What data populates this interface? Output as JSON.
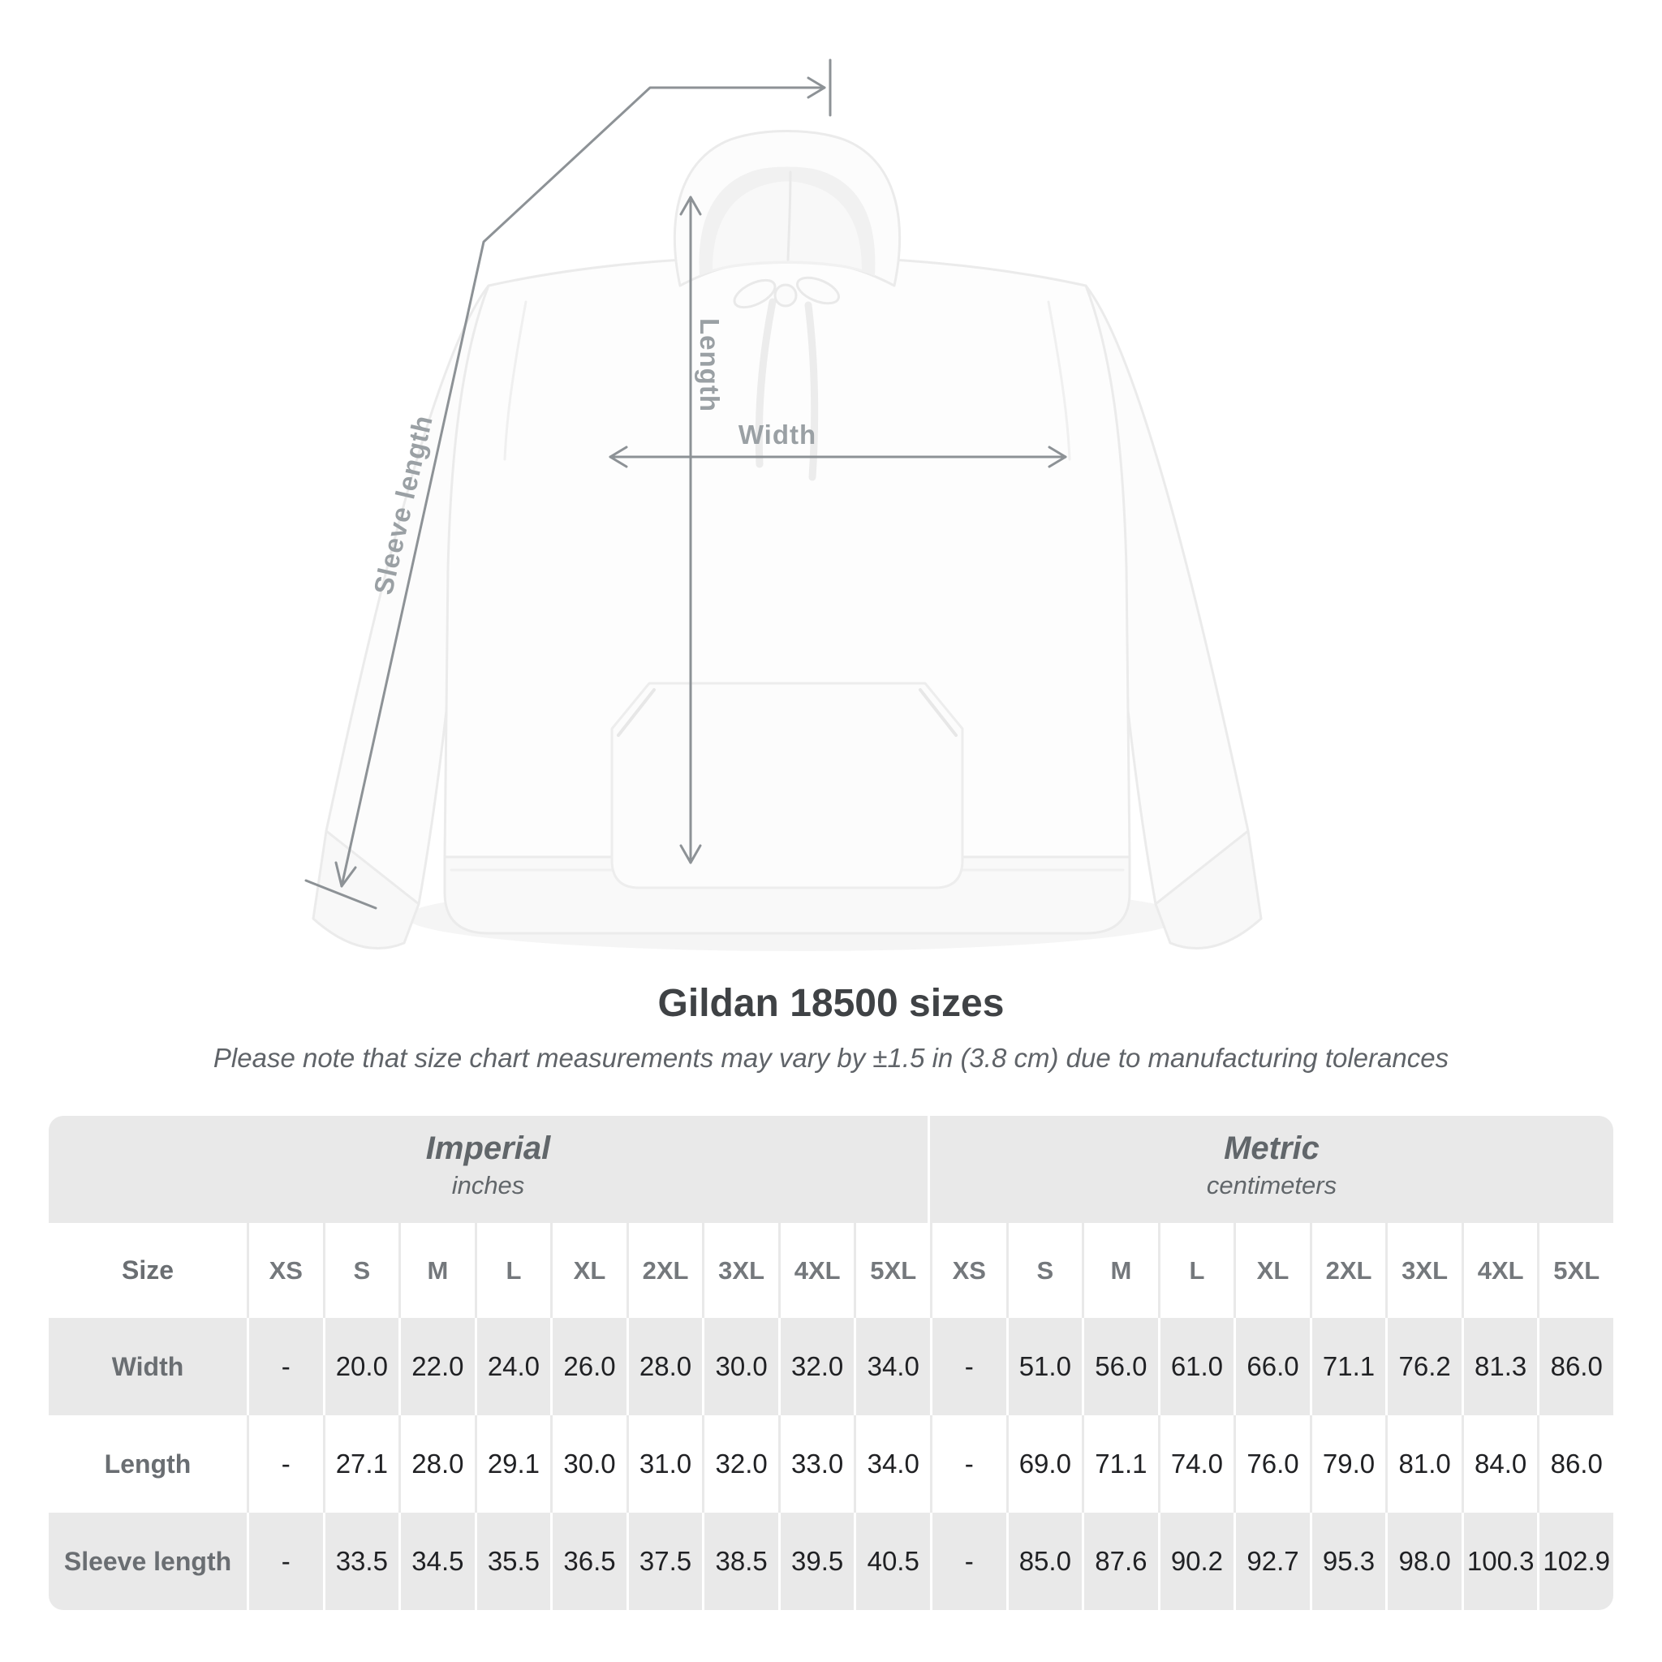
{
  "heading": {
    "title": "Gildan 18500 sizes",
    "subtitle": "Please note that size chart measurements may vary by ±1.5 in (3.8 cm) due to manufacturing tolerances"
  },
  "figure": {
    "product": "white pullover hoodie flat-lay with measurement arrows",
    "length_label": "Length",
    "width_label": "Width",
    "sleeve_label": "Sleeve length"
  },
  "table": {
    "size_label": "Size",
    "unit_groups": [
      {
        "name": "Imperial",
        "unit": "inches"
      },
      {
        "name": "Metric",
        "unit": "centimeters"
      }
    ],
    "columns": [
      "XS",
      "S",
      "M",
      "L",
      "XL",
      "2XL",
      "3XL",
      "4XL",
      "5XL"
    ],
    "rows": [
      {
        "label": "Width",
        "imperial": [
          "-",
          "20.0",
          "22.0",
          "24.0",
          "26.0",
          "28.0",
          "30.0",
          "32.0",
          "34.0"
        ],
        "metric": [
          "-",
          "51.0",
          "56.0",
          "61.0",
          "66.0",
          "71.1",
          "76.2",
          "81.3",
          "86.0"
        ]
      },
      {
        "label": "Length",
        "imperial": [
          "-",
          "27.1",
          "28.0",
          "29.1",
          "30.0",
          "31.0",
          "32.0",
          "33.0",
          "34.0"
        ],
        "metric": [
          "-",
          "69.0",
          "71.1",
          "74.0",
          "76.0",
          "79.0",
          "81.0",
          "84.0",
          "86.0"
        ]
      },
      {
        "label": "Sleeve length",
        "imperial": [
          "-",
          "33.5",
          "34.5",
          "35.5",
          "36.5",
          "37.5",
          "38.5",
          "39.5",
          "40.5"
        ],
        "metric": [
          "-",
          "85.0",
          "87.6",
          "90.2",
          "92.7",
          "95.3",
          "98.0",
          "100.3",
          "102.9"
        ]
      }
    ]
  },
  "colors": {
    "background": "#ffffff",
    "stripe_gray": "#e9e9e9",
    "band_gray": "#e9e9e9",
    "value_text": "#202124",
    "header_text": "#74787c",
    "row_label_text": "#6a6e72",
    "title_text": "#3f4245",
    "subtitle_text": "#5f6368",
    "annotation_line": "#8d9296",
    "annotation_label": "#9aa0a4"
  }
}
